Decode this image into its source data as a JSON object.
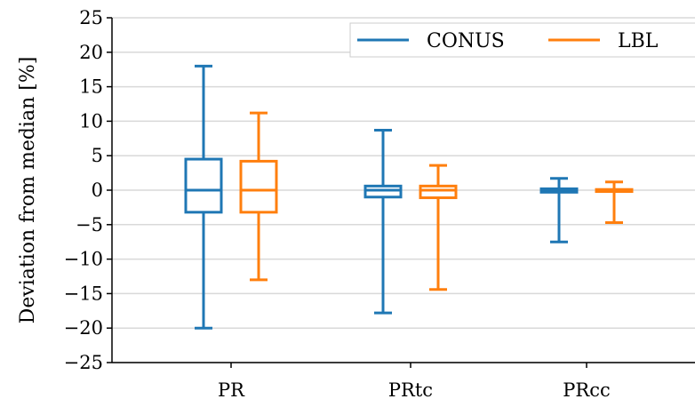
{
  "chart_data": {
    "type": "box",
    "title": "",
    "xlabel": "",
    "ylabel": "Deviation from median [%]",
    "ylim": [
      -25,
      25
    ],
    "yticks": [
      -25,
      -20,
      -15,
      -10,
      -5,
      0,
      5,
      10,
      15,
      20,
      25
    ],
    "ytick_labels": [
      "−25",
      "−20",
      "−15",
      "−10",
      "−5",
      "0",
      "5",
      "10",
      "15",
      "20",
      "25"
    ],
    "categories": [
      "PR",
      "PRtc",
      "PRcc"
    ],
    "grid": "horizontal",
    "legend": {
      "placement": "top-right",
      "ncol": 2
    },
    "series": [
      {
        "name": "CONUS",
        "color": "#1f77b4",
        "boxes": [
          {
            "whisker_low": -20,
            "q1": -3.2,
            "median": 0,
            "q3": 4.5,
            "whisker_high": 18
          },
          {
            "whisker_low": -17.8,
            "q1": -1.0,
            "median": 0,
            "q3": 0.6,
            "whisker_high": 8.7
          },
          {
            "whisker_low": -7.5,
            "q1": -0.3,
            "median": 0,
            "q3": 0.2,
            "whisker_high": 1.7
          }
        ]
      },
      {
        "name": "LBL",
        "color": "#ff7f0e",
        "boxes": [
          {
            "whisker_low": -13,
            "q1": -3.2,
            "median": 0,
            "q3": 4.2,
            "whisker_high": 11.2
          },
          {
            "whisker_low": -14.4,
            "q1": -1.1,
            "median": 0,
            "q3": 0.6,
            "whisker_high": 3.6
          },
          {
            "whisker_low": -4.7,
            "q1": -0.2,
            "median": 0,
            "q3": 0.1,
            "whisker_high": 1.2
          }
        ]
      }
    ]
  }
}
